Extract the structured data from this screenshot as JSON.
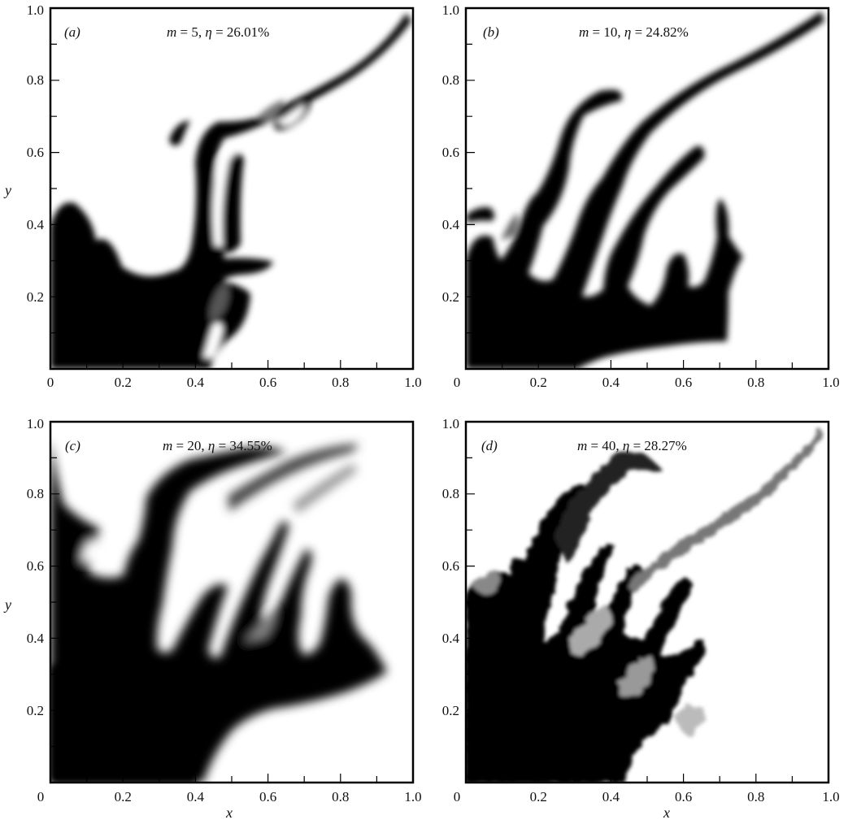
{
  "figure": {
    "panels": [
      {
        "tag": "(a)",
        "annotation": {
          "m_symbol": "m",
          "m_value": "5",
          "eta_symbol": "η",
          "eta_value": "26.01%"
        },
        "x_ticks": [
          "0",
          "0.2",
          "0.4",
          "0.6",
          "0.8",
          "1.0"
        ],
        "y_ticks": [
          "0.2",
          "0.4",
          "0.6",
          "0.8",
          "1.0"
        ],
        "xlabel": "",
        "ylabel": "y"
      },
      {
        "tag": "(b)",
        "annotation": {
          "m_symbol": "m",
          "m_value": "10",
          "eta_symbol": "η",
          "eta_value": "24.82%"
        },
        "x_ticks": [
          "0",
          "0.2",
          "0.4",
          "0.6",
          "0.8",
          "1.0"
        ],
        "y_ticks": [
          "0.2",
          "0.4",
          "0.6",
          "0.8",
          "1.0"
        ],
        "xlabel": "",
        "ylabel": ""
      },
      {
        "tag": "(c)",
        "annotation": {
          "m_symbol": "m",
          "m_value": "20",
          "eta_symbol": "η",
          "eta_value": "34.55%"
        },
        "x_ticks": [
          "0",
          "0.2",
          "0.4",
          "0.6",
          "0.8",
          "1.0"
        ],
        "y_ticks": [
          "0.2",
          "0.4",
          "0.6",
          "0.8",
          "1.0"
        ],
        "xlabel": "x",
        "ylabel": "y"
      },
      {
        "tag": "(d)",
        "annotation": {
          "m_symbol": "m",
          "m_value": "40",
          "eta_symbol": "η",
          "eta_value": "28.27%"
        },
        "x_ticks": [
          "0",
          "0.2",
          "0.4",
          "0.6",
          "0.8",
          "1.0"
        ],
        "y_ticks": [
          "0.2",
          "0.4",
          "0.6",
          "0.8",
          "1.0"
        ],
        "xlabel": "x",
        "ylabel": ""
      }
    ],
    "colors": {
      "fluid": "#000000",
      "background": "#ffffff",
      "frame": "#000000"
    }
  }
}
